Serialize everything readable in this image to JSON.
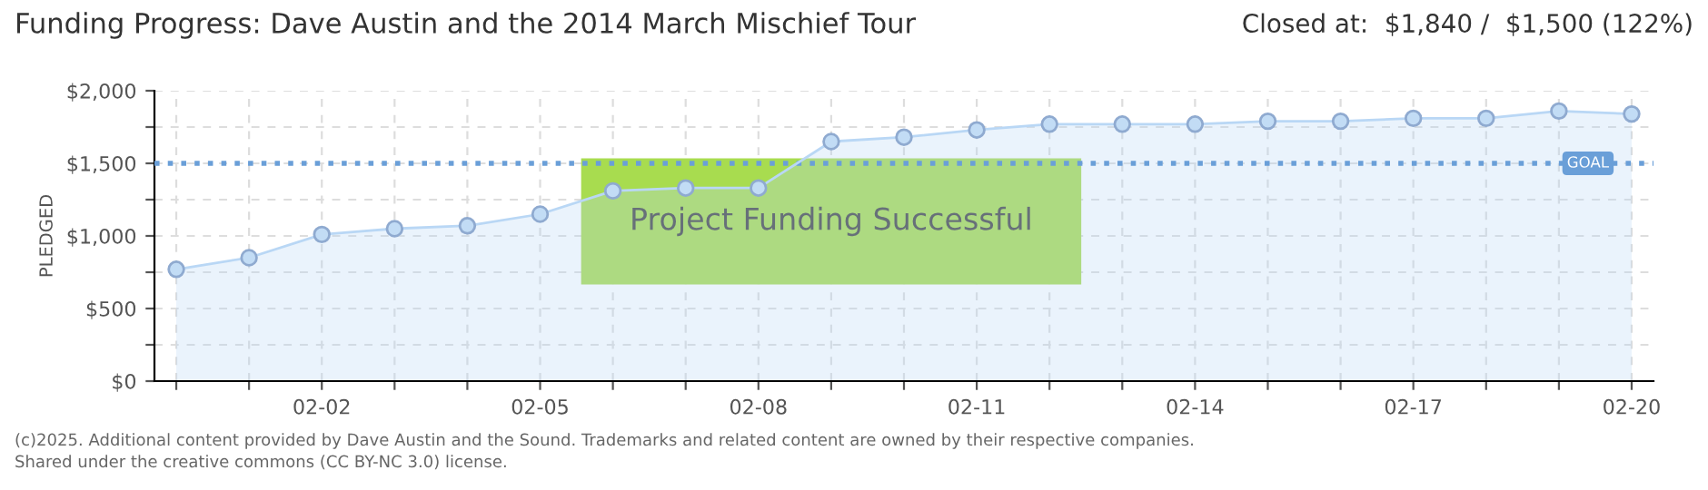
{
  "chart_data": {
    "type": "area",
    "title": "Funding Progress: Dave Austin and the 2014 March Mischief Tour",
    "subtitle": "Closed at:  $1,840 /  $1,500 (122%)",
    "ylabel": "PLEDGED",
    "categories": [
      null,
      null,
      "02-02",
      null,
      null,
      "02-05",
      null,
      null,
      "02-08",
      null,
      null,
      "02-11",
      null,
      null,
      "02-14",
      null,
      null,
      "02-17",
      null,
      null,
      "02-20"
    ],
    "series": [
      {
        "color": "#b9d7f5",
        "values": [
          770,
          850,
          1010,
          1050,
          1070,
          1150,
          1310,
          1330,
          1330,
          1650,
          1680,
          1730,
          1770,
          1770,
          1770,
          1790,
          1790,
          1810,
          1810,
          1860,
          1840
        ]
      }
    ],
    "ylim": [
      0,
      2000
    ],
    "yticks": [
      {
        "value": 0,
        "label": "$0"
      },
      {
        "value": 250,
        "label": null
      },
      {
        "value": 500,
        "label": "$500"
      },
      {
        "value": 750,
        "label": null
      },
      {
        "value": 1000,
        "label": "$1,000"
      },
      {
        "value": 1250,
        "label": null
      },
      {
        "value": 1500,
        "label": "$1,500"
      },
      {
        "value": 1750,
        "label": null
      },
      {
        "value": 2000,
        "label": "$2,000"
      }
    ],
    "ref_lines": [
      {
        "axis": "y",
        "value": 1500,
        "label": "GOAL",
        "color": "#6a9fd8",
        "line_style": "dotted"
      }
    ],
    "grid": true,
    "marker": "circle",
    "legend": false,
    "annotations": [
      "Project Funding Successful",
      "(c)2025. Additional content provided by Dave Austin and the Sound. Trademarks and related content are owned by their respective companies.",
      "Shared under the creative commons (CC BY-NC 3.0) license."
    ]
  }
}
